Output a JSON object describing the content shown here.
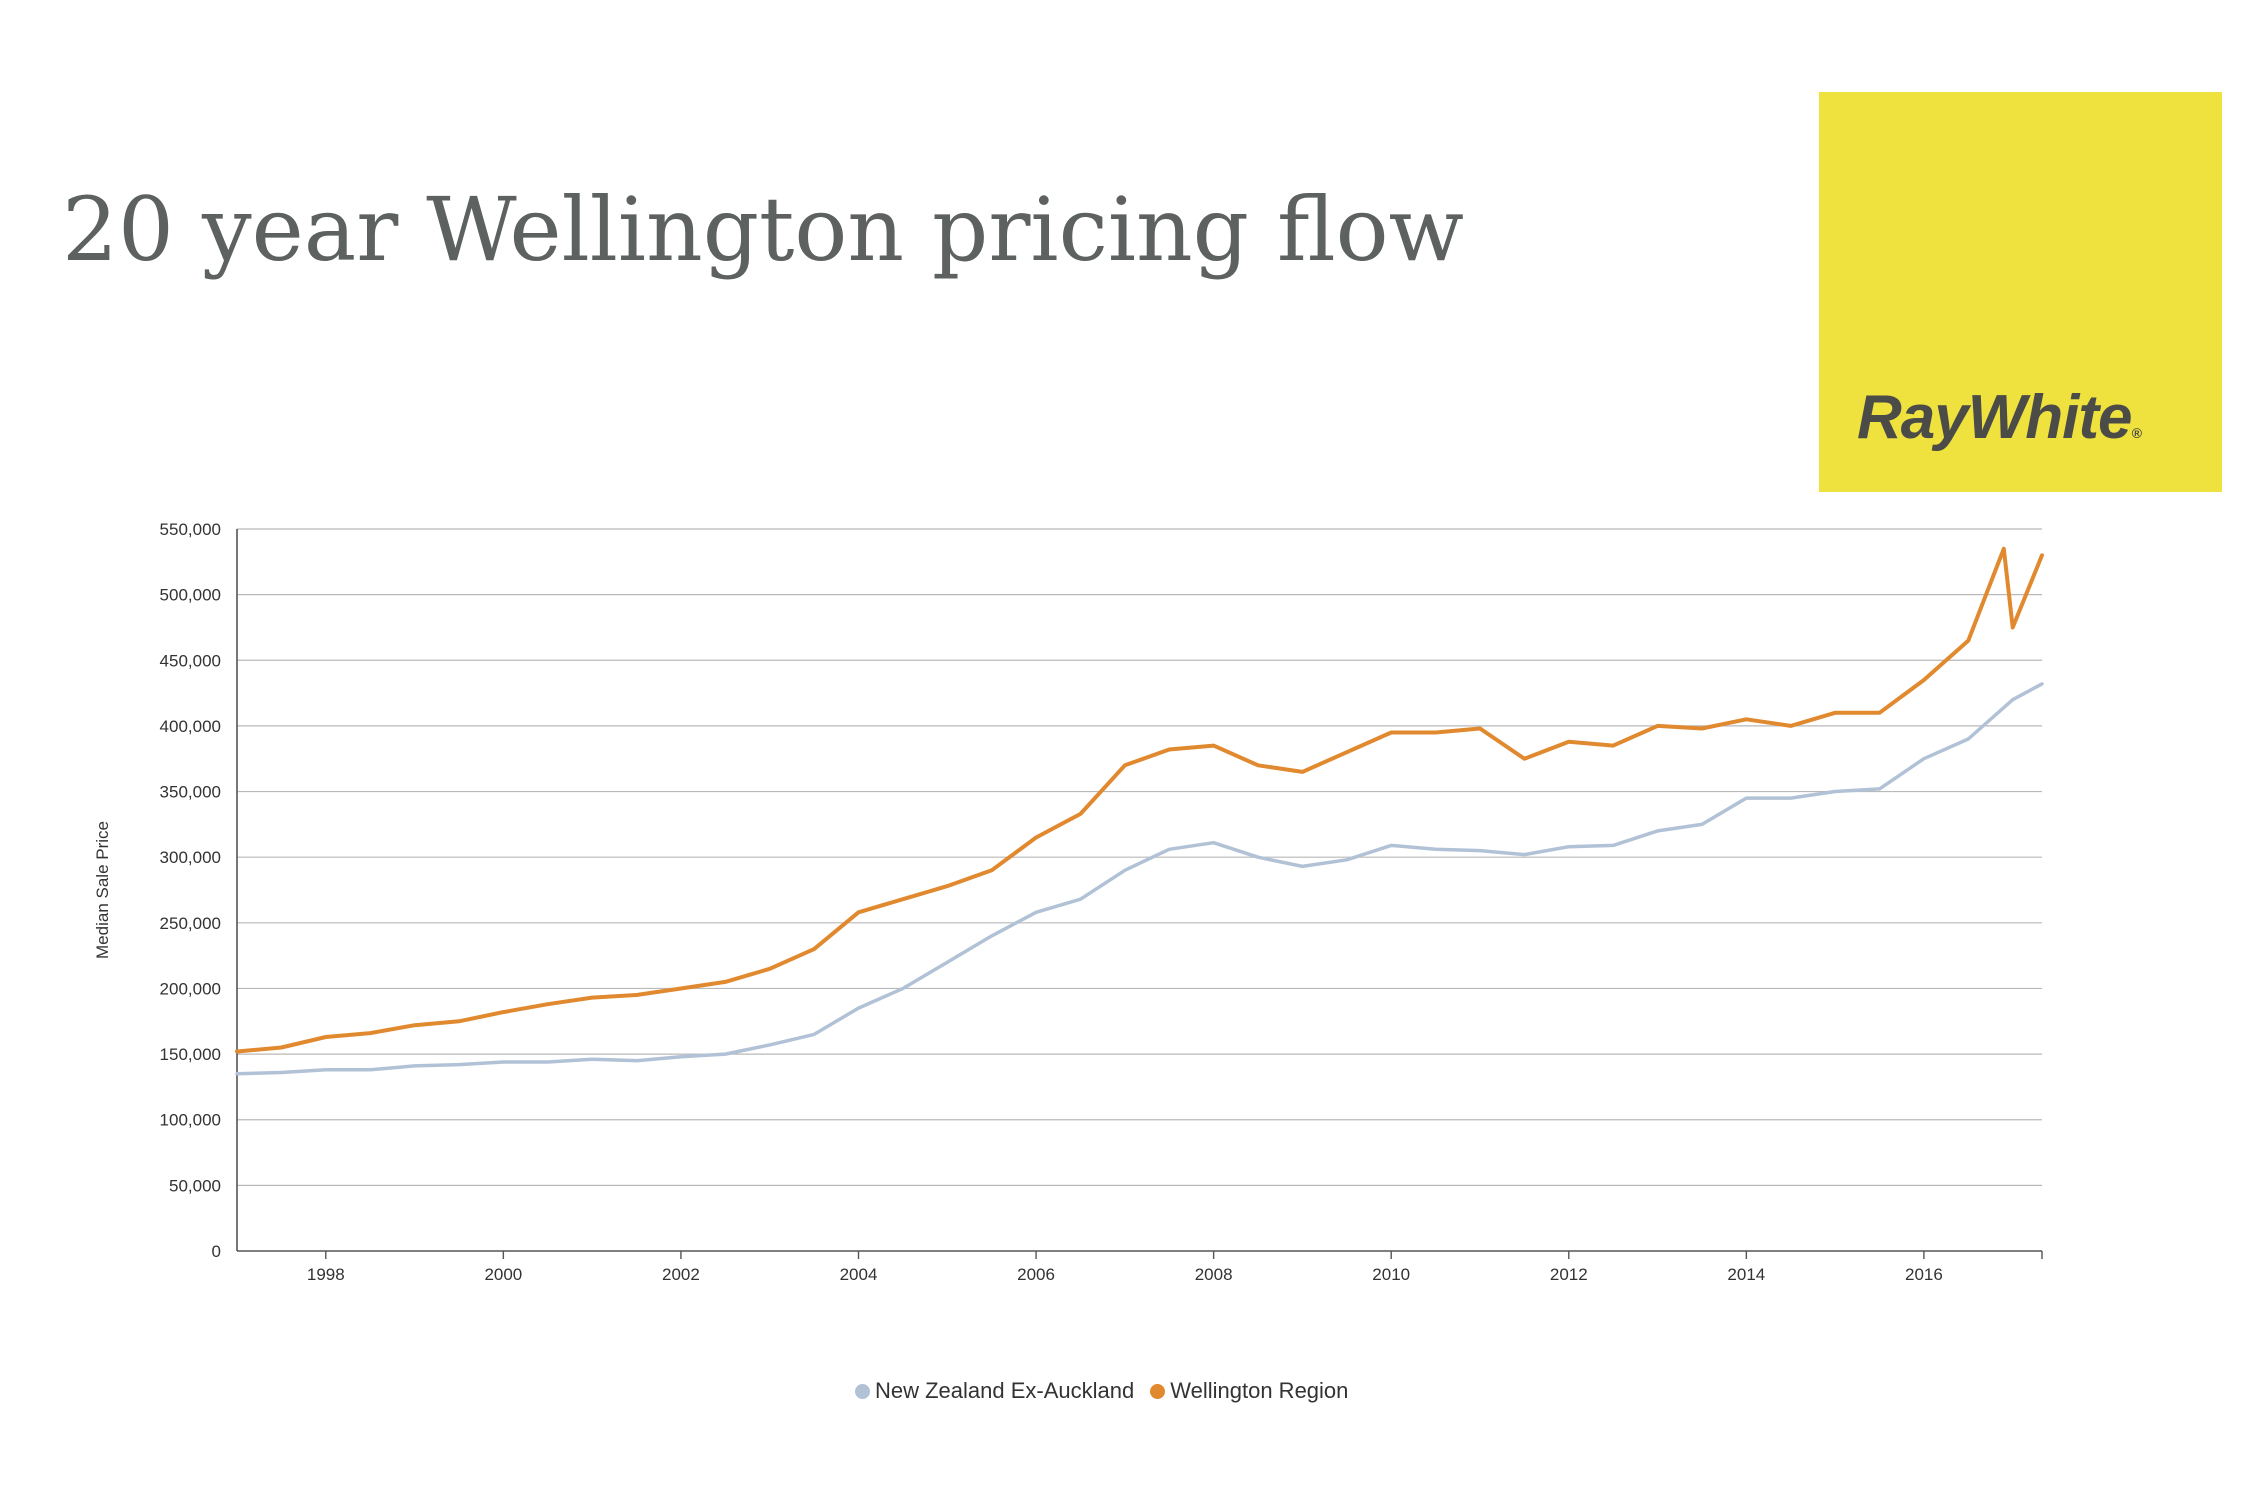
{
  "title": "20 year Wellington pricing flow",
  "logo": {
    "text": "RayWhite",
    "reg_mark": "®"
  },
  "colors": {
    "wellington": "#e1892f",
    "nz_ex_auckland": "#b2c2d6",
    "logo_bg": "#efe13e"
  },
  "chart_data": {
    "type": "line",
    "title": "",
    "xlabel": "",
    "ylabel": "Median Sale Price",
    "xlim": [
      1997.0,
      2017.33
    ],
    "ylim": [
      0,
      550000
    ],
    "y_ticks": [
      0,
      50000,
      100000,
      150000,
      200000,
      250000,
      300000,
      350000,
      400000,
      450000,
      500000,
      550000
    ],
    "y_tick_labels": [
      "0",
      "50,000",
      "100,000",
      "150,000",
      "200,000",
      "250,000",
      "300,000",
      "350,000",
      "400,000",
      "450,000",
      "500,000",
      "550,000"
    ],
    "x_ticks": [
      1998,
      2000,
      2002,
      2004,
      2006,
      2008,
      2010,
      2012,
      2014,
      2016
    ],
    "x_tick_labels": [
      "1998",
      "2000",
      "2002",
      "2004",
      "2006",
      "2008",
      "2010",
      "2012",
      "2014",
      "2016"
    ],
    "grid": true,
    "legend_position": "bottom-center",
    "series": [
      {
        "name": "New Zealand Ex-Auckland",
        "color": "#b2c2d6",
        "points": [
          [
            1997.0,
            135000
          ],
          [
            1997.5,
            136000
          ],
          [
            1998.0,
            138000
          ],
          [
            1998.5,
            138000
          ],
          [
            1999.0,
            141000
          ],
          [
            1999.5,
            142000
          ],
          [
            2000.0,
            144000
          ],
          [
            2000.5,
            144000
          ],
          [
            2001.0,
            146000
          ],
          [
            2001.5,
            145000
          ],
          [
            2002.0,
            148000
          ],
          [
            2002.5,
            150000
          ],
          [
            2003.0,
            157000
          ],
          [
            2003.5,
            165000
          ],
          [
            2004.0,
            185000
          ],
          [
            2004.5,
            200000
          ],
          [
            2005.0,
            220000
          ],
          [
            2005.5,
            240000
          ],
          [
            2006.0,
            258000
          ],
          [
            2006.5,
            268000
          ],
          [
            2007.0,
            290000
          ],
          [
            2007.5,
            306000
          ],
          [
            2008.0,
            311000
          ],
          [
            2008.5,
            300000
          ],
          [
            2009.0,
            293000
          ],
          [
            2009.5,
            298000
          ],
          [
            2010.0,
            309000
          ],
          [
            2010.5,
            306000
          ],
          [
            2011.0,
            305000
          ],
          [
            2011.5,
            302000
          ],
          [
            2012.0,
            308000
          ],
          [
            2012.5,
            309000
          ],
          [
            2013.0,
            320000
          ],
          [
            2013.5,
            325000
          ],
          [
            2014.0,
            345000
          ],
          [
            2014.5,
            345000
          ],
          [
            2015.0,
            350000
          ],
          [
            2015.5,
            352000
          ],
          [
            2016.0,
            375000
          ],
          [
            2016.5,
            390000
          ],
          [
            2017.0,
            420000
          ],
          [
            2017.33,
            432000
          ]
        ]
      },
      {
        "name": "Wellington Region",
        "color": "#e1892f",
        "points": [
          [
            1997.0,
            152000
          ],
          [
            1997.5,
            155000
          ],
          [
            1998.0,
            163000
          ],
          [
            1998.5,
            166000
          ],
          [
            1999.0,
            172000
          ],
          [
            1999.5,
            175000
          ],
          [
            2000.0,
            182000
          ],
          [
            2000.5,
            188000
          ],
          [
            2001.0,
            193000
          ],
          [
            2001.5,
            195000
          ],
          [
            2002.0,
            200000
          ],
          [
            2002.5,
            205000
          ],
          [
            2003.0,
            215000
          ],
          [
            2003.5,
            230000
          ],
          [
            2004.0,
            258000
          ],
          [
            2004.5,
            268000
          ],
          [
            2005.0,
            278000
          ],
          [
            2005.5,
            290000
          ],
          [
            2006.0,
            315000
          ],
          [
            2006.5,
            333000
          ],
          [
            2007.0,
            370000
          ],
          [
            2007.5,
            382000
          ],
          [
            2008.0,
            385000
          ],
          [
            2008.5,
            370000
          ],
          [
            2009.0,
            365000
          ],
          [
            2009.5,
            380000
          ],
          [
            2010.0,
            395000
          ],
          [
            2010.5,
            395000
          ],
          [
            2011.0,
            398000
          ],
          [
            2011.5,
            375000
          ],
          [
            2012.0,
            388000
          ],
          [
            2012.5,
            385000
          ],
          [
            2013.0,
            400000
          ],
          [
            2013.5,
            398000
          ],
          [
            2014.0,
            405000
          ],
          [
            2014.5,
            400000
          ],
          [
            2015.0,
            410000
          ],
          [
            2015.5,
            410000
          ],
          [
            2016.0,
            435000
          ],
          [
            2016.5,
            465000
          ],
          [
            2016.9,
            535000
          ],
          [
            2017.0,
            475000
          ],
          [
            2017.33,
            530000
          ]
        ]
      }
    ]
  }
}
